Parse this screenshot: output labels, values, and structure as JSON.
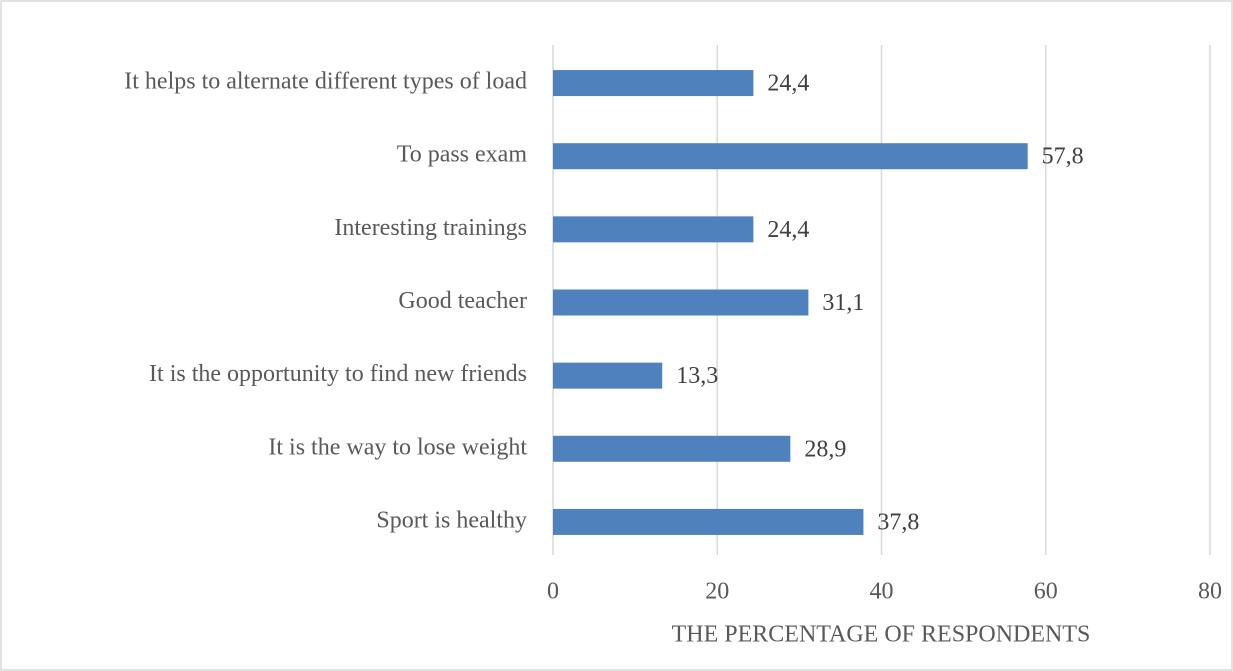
{
  "chart_data": {
    "type": "barh",
    "categories": [
      "It helps to alternate different types of load",
      "To pass exam",
      "Interesting trainings",
      "Good teacher",
      "It is the opportunity to find new friends",
      "It is the way to lose weight",
      "Sport is healthy"
    ],
    "values": [
      24.4,
      57.8,
      24.4,
      31.1,
      13.3,
      28.9,
      37.8
    ],
    "value_labels": [
      "24,4",
      "57,8",
      "24,4",
      "31,1",
      "13,3",
      "28,9",
      "37,8"
    ],
    "color": "#4f81bd",
    "xlabel": "THE PERCENTAGE OF RESPONDENTS",
    "xlim": [
      0,
      80
    ],
    "xticks": [
      0,
      20,
      40,
      60,
      80
    ],
    "grid": true
  }
}
